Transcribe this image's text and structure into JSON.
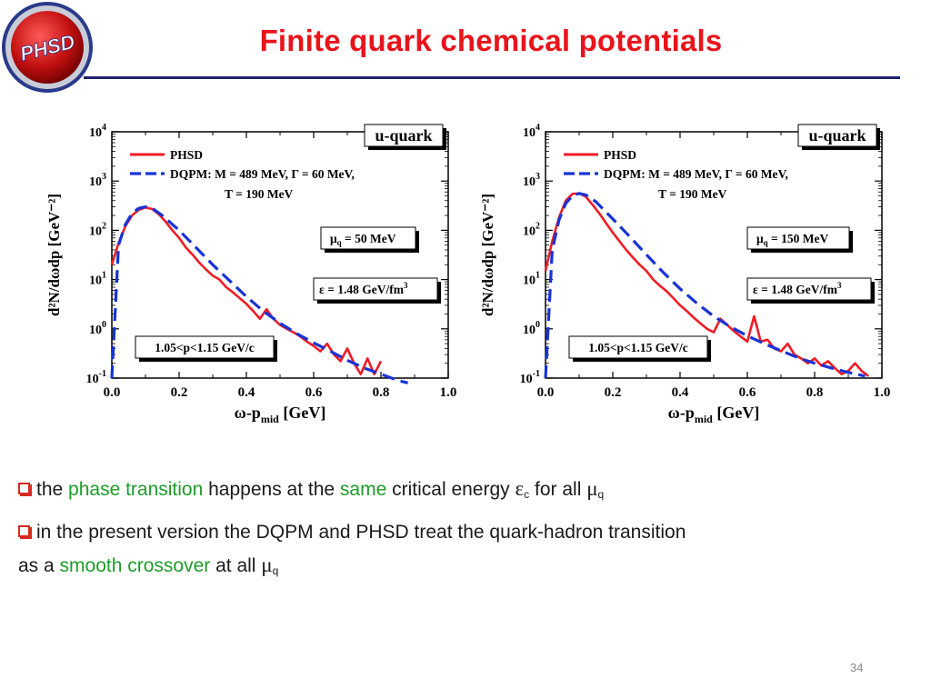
{
  "slide": {
    "title": "Finite quark chemical potentials",
    "logo_text": "PHSD",
    "page_number": "34",
    "bullets": [
      {
        "parts": [
          {
            "text": "the ",
            "style": "normal"
          },
          {
            "text": "phase transition",
            "style": "green"
          },
          {
            "text": " happens at the ",
            "style": "normal"
          },
          {
            "text": "same",
            "style": "green"
          },
          {
            "text": " critical energy ",
            "style": "normal"
          },
          {
            "text": "ε",
            "style": "sym"
          },
          {
            "text": "c",
            "style": "sub"
          },
          {
            "text": " for all ",
            "style": "normal"
          },
          {
            "text": "μ",
            "style": "sym"
          },
          {
            "text": "q",
            "style": "sub"
          }
        ]
      },
      {
        "parts": [
          {
            "text": "in the present version the DQPM and PHSD treat the quark-hadron transition",
            "style": "normal"
          },
          {
            "text": "as a ",
            "style": "newline"
          },
          {
            "text": "smooth crossover",
            "style": "green"
          },
          {
            "text": " at all ",
            "style": "normal"
          },
          {
            "text": "μ",
            "style": "sym"
          },
          {
            "text": "q",
            "style": "sub"
          }
        ]
      }
    ]
  },
  "colors": {
    "title": "#e8141b",
    "rule": "#1c2370",
    "highlight": "#1e9c2a",
    "phsd_line": "#ee1c25",
    "dqpm_line": "#1833d6",
    "bullet_box": "#d42b1e"
  },
  "chart_data": [
    {
      "type": "line",
      "panel": "left",
      "xlabel": "ω-p",
      "xlabel_sub": "mid",
      "xlabel_unit": " [GeV]",
      "ylabel": "d²N/dωdp [GeV⁻²]",
      "xlim": [
        0.0,
        1.0
      ],
      "ylim_log10": [
        -1,
        4
      ],
      "log_y": true,
      "x_ticks": [
        "0.0",
        "0.2",
        "0.4",
        "0.6",
        "0.8",
        "1.0"
      ],
      "y_ticks": [
        {
          "base": "10",
          "exp": "-1"
        },
        {
          "base": "10",
          "exp": "0"
        },
        {
          "base": "10",
          "exp": "1"
        },
        {
          "base": "10",
          "exp": "2"
        },
        {
          "base": "10",
          "exp": "3"
        },
        {
          "base": "10",
          "exp": "4"
        }
      ],
      "legend": {
        "placement": "top-left",
        "entries": [
          "PHSD",
          "DQPM: M =  489 MeV, Γ = 60 MeV,"
        ],
        "extra_line": "T = 190 MeV"
      },
      "labels": {
        "quark": "u-quark",
        "mu_main": "μ",
        "mu_sub": "q",
        "mu_value": " = 50 MeV",
        "eps": "ε = 1.48 GeV/fm",
        "eps_sup": "3",
        "momentum": "1.05<p<1.15 GeV/c"
      },
      "series": [
        {
          "name": "PHSD",
          "style": "solid",
          "x": [
            0.0,
            0.02,
            0.04,
            0.06,
            0.08,
            0.1,
            0.12,
            0.14,
            0.16,
            0.18,
            0.2,
            0.22,
            0.24,
            0.26,
            0.28,
            0.3,
            0.32,
            0.34,
            0.36,
            0.38,
            0.4,
            0.42,
            0.44,
            0.46,
            0.48,
            0.5,
            0.52,
            0.54,
            0.56,
            0.58,
            0.6,
            0.62,
            0.64,
            0.66,
            0.68,
            0.7,
            0.72,
            0.74,
            0.76,
            0.78,
            0.8
          ],
          "y": [
            20,
            55,
            120,
            200,
            260,
            290,
            270,
            210,
            150,
            100,
            70,
            45,
            32,
            22,
            16,
            12,
            10,
            7,
            5.5,
            4.2,
            3.2,
            2.3,
            1.6,
            2.5,
            1.6,
            1.2,
            1.0,
            0.85,
            0.7,
            0.55,
            0.45,
            0.35,
            0.5,
            0.3,
            0.22,
            0.4,
            0.2,
            0.12,
            0.25,
            0.12,
            0.22
          ]
        },
        {
          "name": "DQPM: M =  489 MeV, Γ = 60 MeV,",
          "style": "dashed",
          "x": [
            0.0,
            0.02,
            0.04,
            0.06,
            0.08,
            0.1,
            0.12,
            0.15,
            0.2,
            0.25,
            0.3,
            0.35,
            0.4,
            0.45,
            0.5,
            0.55,
            0.6,
            0.65,
            0.7,
            0.75,
            0.8,
            0.85,
            0.88
          ],
          "y": [
            0.1,
            50,
            130,
            220,
            280,
            300,
            280,
            200,
            100,
            45,
            20,
            9.5,
            4.5,
            2.3,
            1.3,
            0.8,
            0.52,
            0.35,
            0.23,
            0.16,
            0.12,
            0.09,
            0.08
          ]
        }
      ]
    },
    {
      "type": "line",
      "panel": "right",
      "xlabel": "ω-p",
      "xlabel_sub": "mid",
      "xlabel_unit": " [GeV]",
      "ylabel": "d²N/dωdp [GeV⁻²]",
      "xlim": [
        0.0,
        1.0
      ],
      "ylim_log10": [
        -1,
        4
      ],
      "log_y": true,
      "x_ticks": [
        "0.0",
        "0.2",
        "0.4",
        "0.6",
        "0.8",
        "1.0"
      ],
      "y_ticks": [
        {
          "base": "10",
          "exp": "-1"
        },
        {
          "base": "10",
          "exp": "0"
        },
        {
          "base": "10",
          "exp": "1"
        },
        {
          "base": "10",
          "exp": "2"
        },
        {
          "base": "10",
          "exp": "3"
        },
        {
          "base": "10",
          "exp": "4"
        }
      ],
      "legend": {
        "placement": "top-left",
        "entries": [
          "PHSD",
          "DQPM: M =  489 MeV, Γ = 60 MeV,"
        ],
        "extra_line": "T = 190 MeV"
      },
      "labels": {
        "quark": "u-quark",
        "mu_main": "μ",
        "mu_sub": "q",
        "mu_value": " = 150 MeV",
        "eps": "ε = 1.48 GeV/fm",
        "eps_sup": "3",
        "momentum": "1.05<p<1.15 GeV/c"
      },
      "series": [
        {
          "name": "PHSD",
          "style": "solid",
          "x": [
            0.0,
            0.02,
            0.04,
            0.06,
            0.08,
            0.1,
            0.12,
            0.14,
            0.16,
            0.18,
            0.2,
            0.22,
            0.24,
            0.26,
            0.28,
            0.3,
            0.32,
            0.34,
            0.36,
            0.38,
            0.4,
            0.42,
            0.44,
            0.46,
            0.48,
            0.5,
            0.52,
            0.54,
            0.56,
            0.58,
            0.6,
            0.62,
            0.64,
            0.66,
            0.68,
            0.7,
            0.72,
            0.74,
            0.76,
            0.78,
            0.8,
            0.82,
            0.84,
            0.86,
            0.88,
            0.9,
            0.92,
            0.94,
            0.96
          ],
          "y": [
            15,
            60,
            180,
            400,
            550,
            560,
            480,
            330,
            220,
            140,
            90,
            60,
            40,
            28,
            20,
            15,
            10,
            7.5,
            5.8,
            4.2,
            3.0,
            2.3,
            1.7,
            1.3,
            1.0,
            0.85,
            1.6,
            1.2,
            0.9,
            0.7,
            0.55,
            1.8,
            0.55,
            0.6,
            0.4,
            0.35,
            0.5,
            0.3,
            0.25,
            0.2,
            0.25,
            0.18,
            0.22,
            0.16,
            0.12,
            0.14,
            0.2,
            0.14,
            0.11
          ]
        },
        {
          "name": "DQPM: M =  489 MeV, Γ = 60 MeV,",
          "style": "dashed",
          "x": [
            0.0,
            0.02,
            0.04,
            0.06,
            0.08,
            0.1,
            0.12,
            0.15,
            0.2,
            0.25,
            0.3,
            0.35,
            0.4,
            0.45,
            0.5,
            0.55,
            0.6,
            0.65,
            0.7,
            0.75,
            0.8,
            0.85,
            0.9,
            0.95
          ],
          "y": [
            0.1,
            40,
            160,
            350,
            500,
            560,
            520,
            380,
            170,
            75,
            32,
            14,
            6.5,
            3.3,
            1.8,
            1.1,
            0.72,
            0.5,
            0.36,
            0.26,
            0.2,
            0.16,
            0.13,
            0.11
          ]
        }
      ]
    }
  ]
}
